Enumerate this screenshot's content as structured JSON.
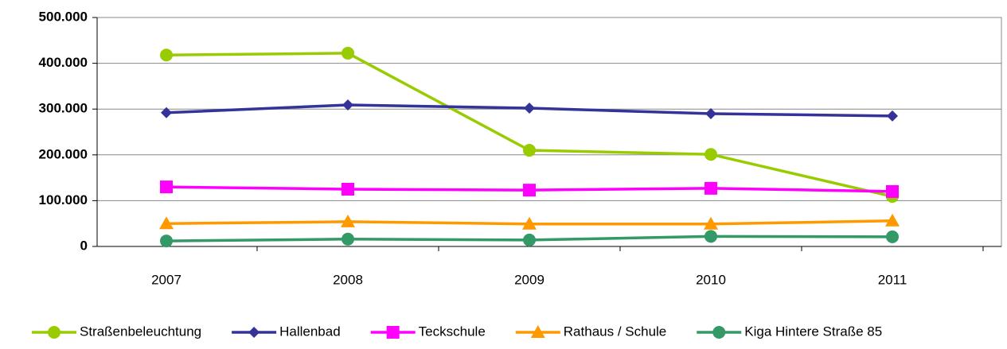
{
  "chart_data": {
    "type": "line",
    "categories": [
      "2007",
      "2008",
      "2009",
      "2010",
      "2011"
    ],
    "series": [
      {
        "name": "Straßenbeleuchtung",
        "color": "#99cc00",
        "marker": "circle",
        "values": [
          418000,
          422000,
          210000,
          201000,
          109000
        ]
      },
      {
        "name": "Hallenbad",
        "color": "#333399",
        "marker": "diamond",
        "values": [
          292000,
          309000,
          302000,
          290000,
          285000
        ]
      },
      {
        "name": "Teckschule",
        "color": "#ff00ff",
        "marker": "square",
        "values": [
          130000,
          125000,
          123000,
          127000,
          120000
        ]
      },
      {
        "name": "Rathaus / Schule",
        "color": "#ff9900",
        "marker": "triangle",
        "values": [
          50000,
          54000,
          49000,
          49000,
          56000
        ]
      },
      {
        "name": "Kiga Hintere Straße 85",
        "color": "#339966",
        "marker": "circle",
        "values": [
          12000,
          16000,
          14000,
          22000,
          21000
        ]
      }
    ],
    "ylim": [
      0,
      500000
    ],
    "yticks": [
      0,
      {
        "value": 100000,
        "label": "100.000"
      },
      {
        "value": 200000,
        "label": "200.000"
      },
      {
        "value": 300000,
        "label": "300.000"
      },
      {
        "value": 400000,
        "label": "400.000"
      },
      {
        "value": 500000,
        "label": "500.000"
      }
    ],
    "grid": true,
    "legend": "bottom"
  }
}
